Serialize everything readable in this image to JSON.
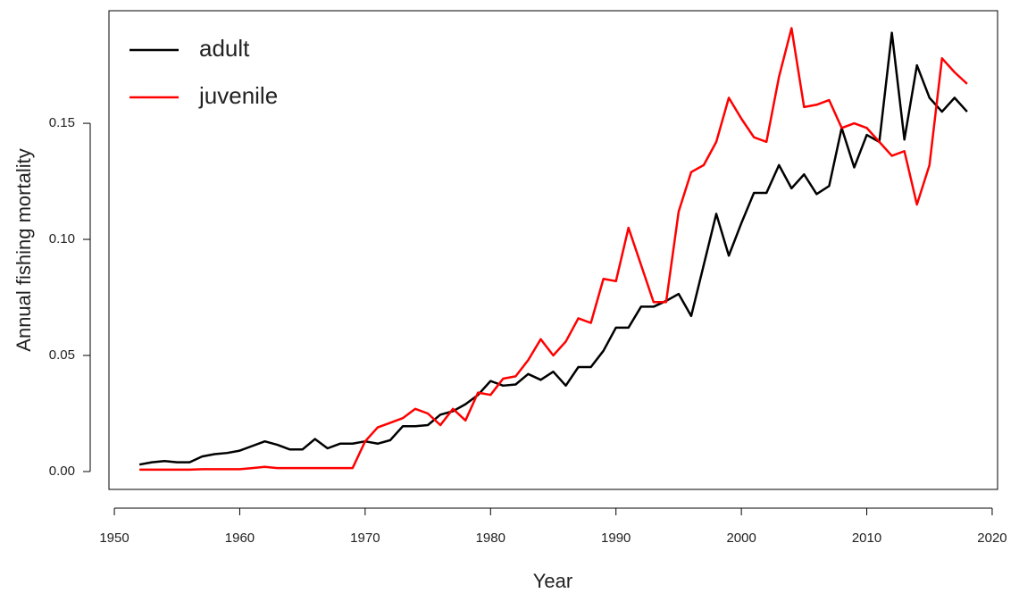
{
  "chart_data": {
    "type": "line",
    "x_label": "Year",
    "y_label": "Annual fishing mortality",
    "x": [
      1952,
      1953,
      1954,
      1955,
      1956,
      1957,
      1958,
      1959,
      1960,
      1961,
      1962,
      1963,
      1964,
      1965,
      1966,
      1967,
      1968,
      1969,
      1970,
      1971,
      1972,
      1973,
      1974,
      1975,
      1976,
      1977,
      1978,
      1979,
      1980,
      1981,
      1982,
      1983,
      1984,
      1985,
      1986,
      1987,
      1988,
      1989,
      1990,
      1991,
      1992,
      1993,
      1994,
      1995,
      1996,
      1997,
      1998,
      1999,
      2000,
      2001,
      2002,
      2003,
      2004,
      2005,
      2006,
      2007,
      2008,
      2009,
      2010,
      2011,
      2012,
      2013,
      2014,
      2015,
      2016,
      2017,
      2018
    ],
    "series": [
      {
        "name": "adult",
        "color": "#000000",
        "values": [
          0.003,
          0.004,
          0.0045,
          0.004,
          0.004,
          0.0065,
          0.0075,
          0.008,
          0.009,
          0.011,
          0.013,
          0.0115,
          0.0095,
          0.0095,
          0.014,
          0.01,
          0.012,
          0.012,
          0.013,
          0.012,
          0.0135,
          0.0195,
          0.0195,
          0.02,
          0.0245,
          0.026,
          0.029,
          0.033,
          0.039,
          0.037,
          0.0375,
          0.042,
          0.0395,
          0.043,
          0.037,
          0.045,
          0.045,
          0.052,
          0.062,
          0.062,
          0.071,
          0.071,
          0.0735,
          0.0765,
          0.067,
          0.089,
          0.111,
          0.093,
          0.107,
          0.12,
          0.12,
          0.132,
          0.122,
          0.128,
          0.1195,
          0.123,
          0.148,
          0.131,
          0.145,
          0.142,
          0.189,
          0.143,
          0.175,
          0.161,
          0.155,
          0.161,
          0.155
        ]
      },
      {
        "name": "juvenile",
        "color": "#ff0000",
        "values": [
          0.0008,
          0.0008,
          0.0008,
          0.0008,
          0.0008,
          0.001,
          0.001,
          0.001,
          0.001,
          0.0015,
          0.002,
          0.0015,
          0.0015,
          0.0015,
          0.0015,
          0.0015,
          0.0015,
          0.0015,
          0.013,
          0.019,
          0.021,
          0.023,
          0.027,
          0.025,
          0.02,
          0.027,
          0.022,
          0.034,
          0.033,
          0.04,
          0.041,
          0.048,
          0.057,
          0.05,
          0.056,
          0.066,
          0.064,
          0.083,
          0.082,
          0.105,
          0.089,
          0.073,
          0.073,
          0.112,
          0.129,
          0.132,
          0.142,
          0.161,
          0.152,
          0.144,
          0.142,
          0.17,
          0.191,
          0.157,
          0.158,
          0.16,
          0.148,
          0.15,
          0.148,
          0.142,
          0.136,
          0.138,
          0.115,
          0.132,
          0.178,
          0.172,
          0.167
        ]
      }
    ],
    "xlim": [
      1949.57,
      2020.43
    ],
    "xticks": [
      1950,
      1960,
      1970,
      1980,
      1990,
      2000,
      2010,
      2020
    ],
    "ylim": [
      -0.0077,
      0.1985
    ],
    "yticks": [
      {
        "value": 0,
        "label": "0.00"
      },
      0.05,
      {
        "value": 0.1,
        "label": "0.10"
      },
      0.15
    ],
    "legend": "top-left",
    "grid": false
  }
}
